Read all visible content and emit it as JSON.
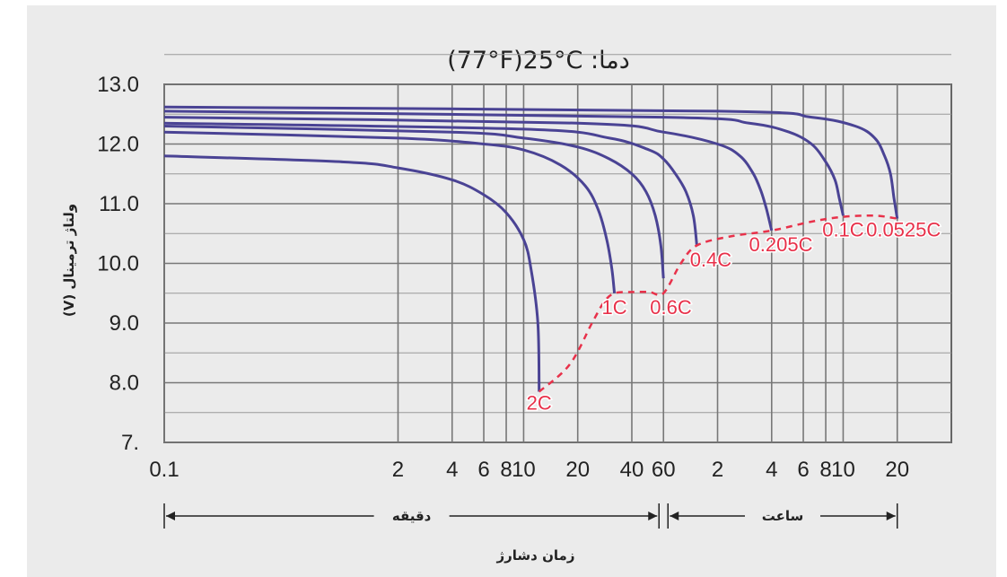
{
  "chart_data": {
    "type": "line",
    "title": "(77°F)25°C :دما",
    "ylabel": "(V) ولتاژ ترمینال",
    "xlabel": "زمان دشارژ",
    "x_scale": "log",
    "x_unit_groups": [
      {
        "label": "دقیقه",
        "from_minutes": 0.1,
        "to_minutes": 60
      },
      {
        "label": "ساعت",
        "from_minutes": 60,
        "to_minutes": 1200
      }
    ],
    "x_ticks_minutes": [
      0.1,
      2,
      4,
      6,
      8,
      10,
      20,
      40,
      60,
      120,
      240,
      360,
      480,
      600,
      1200
    ],
    "x_tick_labels": [
      "0.1",
      "2",
      "4",
      "6",
      "8",
      "10",
      "20",
      "40",
      "60",
      "2",
      "4",
      "6",
      "8",
      "10",
      "20"
    ],
    "y_ticks": [
      7,
      8,
      9,
      10,
      11,
      12,
      13
    ],
    "y_tick_labels": [
      "7.",
      "8.0",
      "9.0",
      "10.0",
      "11.0",
      "12.0",
      "13.0"
    ],
    "ylim": [
      7,
      13
    ],
    "grid": true,
    "colors": {
      "curves": "#4a4394",
      "cutoff": "#e8314a"
    },
    "series": [
      {
        "name": "2C",
        "x_minutes": [
          0.1,
          1,
          2,
          4,
          6,
          8,
          10,
          11,
          12,
          12.2
        ],
        "y": [
          11.8,
          11.7,
          11.6,
          11.4,
          11.15,
          10.85,
          10.4,
          9.9,
          9.0,
          7.85
        ]
      },
      {
        "name": "1C",
        "x_minutes": [
          0.1,
          2,
          6,
          10,
          16,
          22,
          26,
          29,
          31,
          32
        ],
        "y": [
          12.2,
          12.1,
          12.0,
          11.9,
          11.65,
          11.3,
          10.9,
          10.4,
          9.9,
          9.5
        ]
      },
      {
        "name": "0.6C",
        "x_minutes": [
          0.1,
          4,
          10,
          20,
          30,
          40,
          48,
          54,
          58,
          60
        ],
        "y": [
          12.3,
          12.2,
          12.1,
          11.95,
          11.75,
          11.5,
          11.2,
          10.8,
          10.3,
          9.75
        ]
      },
      {
        "name": "0.4C",
        "x_minutes": [
          0.1,
          10,
          30,
          50,
          60,
          70,
          80,
          88,
          92
        ],
        "y": [
          12.35,
          12.25,
          12.1,
          11.9,
          11.75,
          11.5,
          11.2,
          10.8,
          10.3
        ]
      },
      {
        "name": "0.205C",
        "x_minutes": [
          0.1,
          20,
          60,
          120,
          160,
          190,
          210,
          225,
          240
        ],
        "y": [
          12.45,
          12.35,
          12.2,
          12.0,
          11.8,
          11.5,
          11.2,
          10.9,
          10.55
        ]
      },
      {
        "name": "0.1C",
        "x_minutes": [
          0.1,
          60,
          180,
          300,
          400,
          480,
          540,
          570,
          600
        ],
        "y": [
          12.55,
          12.45,
          12.35,
          12.2,
          12.0,
          11.7,
          11.4,
          11.1,
          10.8
        ]
      },
      {
        "name": "0.0525C",
        "x_minutes": [
          0.1,
          120,
          400,
          700,
          900,
          1020,
          1100,
          1150,
          1200
        ],
        "y": [
          12.62,
          12.55,
          12.45,
          12.3,
          12.1,
          11.8,
          11.5,
          11.1,
          10.75
        ]
      }
    ],
    "cutoff_curve": {
      "x_minutes": [
        12.2,
        18,
        24,
        28,
        32,
        40,
        50,
        60,
        75,
        92,
        140,
        240,
        400,
        600,
        900,
        1200
      ],
      "y": [
        7.85,
        8.3,
        9.0,
        9.35,
        9.5,
        9.52,
        9.52,
        9.5,
        10.0,
        10.3,
        10.45,
        10.55,
        10.7,
        10.78,
        10.8,
        10.75
      ]
    },
    "curve_labels": [
      {
        "text": "2C",
        "x_minutes": 12.2,
        "y": 7.55
      },
      {
        "text": "1C",
        "x_minutes": 32,
        "y": 9.15
      },
      {
        "text": "0.6C",
        "x_minutes": 66,
        "y": 9.15
      },
      {
        "text": "0.4C",
        "x_minutes": 110,
        "y": 9.95
      },
      {
        "text": "0.205C",
        "x_minutes": 270,
        "y": 10.2
      },
      {
        "text": "0.1C",
        "x_minutes": 600,
        "y": 10.45
      },
      {
        "text": "0.0525C",
        "x_minutes": 1300,
        "y": 10.45
      }
    ]
  }
}
